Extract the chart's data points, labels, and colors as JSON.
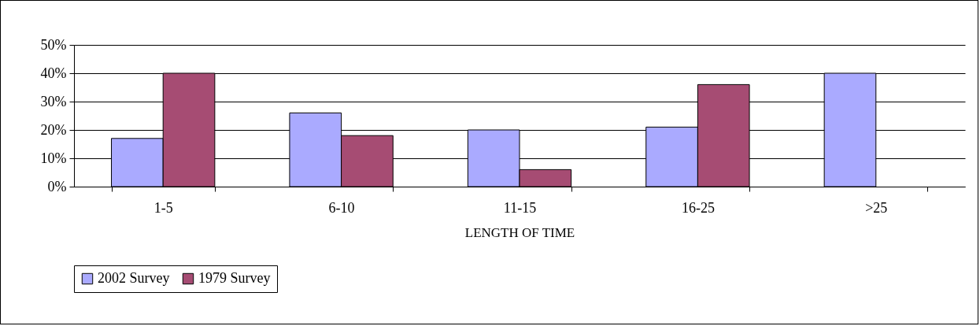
{
  "chart_data": {
    "type": "bar",
    "xlabel": "LENGTH OF TIME",
    "categories": [
      "1-5",
      "6-10",
      "11-15",
      "16-25",
      ">25"
    ],
    "series": [
      {
        "name": "2002 Survey",
        "color": "#aaaaff",
        "values": [
          17,
          26,
          20,
          21,
          40
        ]
      },
      {
        "name": "1979 Survey",
        "color": "#a64c73",
        "values": [
          40,
          18,
          6,
          36,
          null
        ]
      }
    ],
    "ylim": [
      0,
      50
    ],
    "yticks": [
      {
        "value": 0,
        "label": "0%"
      },
      {
        "value": 10,
        "label": "10%"
      },
      {
        "value": 20,
        "label": "20%"
      },
      {
        "value": 30,
        "label": "30%"
      },
      {
        "value": 40,
        "label": "40%"
      },
      {
        "value": 50,
        "label": "50%"
      }
    ],
    "grid": "y",
    "legend": "bottom"
  }
}
